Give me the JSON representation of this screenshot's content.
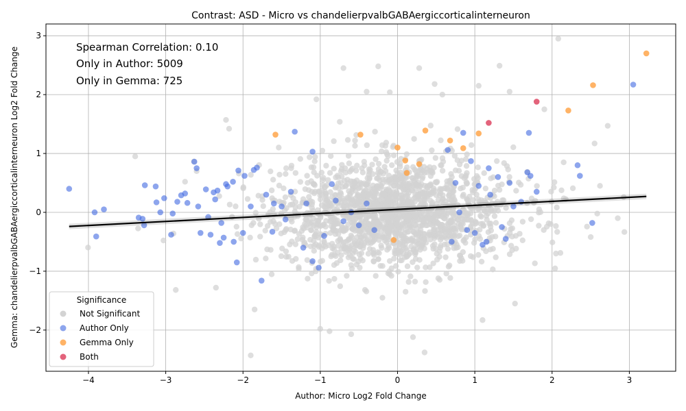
{
  "chart_data": {
    "type": "scatter",
    "title": "Contrast: ASD - Micro vs chandelierpvalbGABAergiccorticalinterneuron",
    "xlabel": "Author: Micro Log2 Fold Change",
    "ylabel": "Gemma: chandelierpvalbGABAergiccorticalinterneuron Log2 Fold Change",
    "xlim": [
      -4.55,
      3.6
    ],
    "ylim": [
      -2.7,
      3.2
    ],
    "x_ticks": [
      -4,
      -3,
      -2,
      -1,
      0,
      1,
      2,
      3
    ],
    "y_ticks": [
      -2,
      -1,
      0,
      1,
      2,
      3
    ],
    "grid": true,
    "annotations": [
      "Spearman Correlation: 0.10",
      "Only in Author: 5009",
      "Only in Gemma: 725"
    ],
    "legend": {
      "title": "Significance",
      "placement": "lower-left",
      "entries": [
        {
          "label": "Not Significant",
          "color": "#d3d3d3"
        },
        {
          "label": "Author Only",
          "color": "#4169e1"
        },
        {
          "label": "Gemma Only",
          "color": "#ffa040"
        },
        {
          "label": "Both",
          "color": "#dc3c5a"
        }
      ]
    },
    "regression_line": {
      "x": [
        -4.25,
        3.22
      ],
      "y": [
        -0.24,
        0.27
      ],
      "color": "#000000"
    },
    "series": [
      {
        "name": "Author Only",
        "color": "#4169e1",
        "points": [
          [
            -4.25,
            0.4
          ],
          [
            -3.92,
            0.0
          ],
          [
            -3.9,
            -0.41
          ],
          [
            -3.8,
            0.05
          ],
          [
            -3.35,
            -0.09
          ],
          [
            -3.3,
            -0.11
          ],
          [
            -3.28,
            -0.22
          ],
          [
            -3.27,
            0.46
          ],
          [
            -3.13,
            0.44
          ],
          [
            -3.12,
            0.17
          ],
          [
            -3.07,
            0.0
          ],
          [
            -3.02,
            0.24
          ],
          [
            -2.93,
            -0.38
          ],
          [
            -2.91,
            -0.02
          ],
          [
            -2.85,
            0.18
          ],
          [
            -2.8,
            0.29
          ],
          [
            -2.75,
            0.32
          ],
          [
            -2.72,
            0.16
          ],
          [
            -2.63,
            0.86
          ],
          [
            -2.6,
            0.75
          ],
          [
            -2.58,
            0.1
          ],
          [
            -2.55,
            -0.35
          ],
          [
            -2.48,
            0.39
          ],
          [
            -2.45,
            -0.08
          ],
          [
            -2.42,
            -0.38
          ],
          [
            -2.38,
            0.34
          ],
          [
            -2.36,
            0.22
          ],
          [
            -2.33,
            0.37
          ],
          [
            -2.3,
            -0.52
          ],
          [
            -2.28,
            -0.18
          ],
          [
            -2.25,
            -0.43
          ],
          [
            -2.22,
            0.48
          ],
          [
            -2.2,
            0.44
          ],
          [
            -2.13,
            0.52
          ],
          [
            -2.12,
            -0.5
          ],
          [
            -2.08,
            -0.85
          ],
          [
            -2.06,
            0.71
          ],
          [
            -2.0,
            -0.35
          ],
          [
            -1.98,
            0.62
          ],
          [
            -1.9,
            0.1
          ],
          [
            -1.86,
            0.72
          ],
          [
            -1.82,
            0.76
          ],
          [
            -1.76,
            -1.16
          ],
          [
            -1.7,
            0.3
          ],
          [
            -1.62,
            -0.33
          ],
          [
            -1.6,
            0.15
          ],
          [
            -1.5,
            0.1
          ],
          [
            -1.45,
            -0.12
          ],
          [
            -1.38,
            0.35
          ],
          [
            -1.33,
            1.37
          ],
          [
            -1.22,
            -0.6
          ],
          [
            -1.18,
            0.15
          ],
          [
            -1.1,
            1.03
          ],
          [
            -1.1,
            -0.83
          ],
          [
            -1.02,
            -0.94
          ],
          [
            -0.95,
            -0.4
          ],
          [
            -0.85,
            0.48
          ],
          [
            -0.8,
            0.2
          ],
          [
            -0.7,
            -0.15
          ],
          [
            -0.6,
            0.0
          ],
          [
            -0.5,
            -0.22
          ],
          [
            -0.4,
            0.15
          ],
          [
            -0.3,
            -0.3
          ],
          [
            0.65,
            1.06
          ],
          [
            0.7,
            -0.5
          ],
          [
            0.75,
            0.5
          ],
          [
            0.8,
            0.0
          ],
          [
            0.85,
            1.35
          ],
          [
            0.9,
            -0.3
          ],
          [
            0.95,
            0.87
          ],
          [
            1.0,
            -0.35
          ],
          [
            1.05,
            0.45
          ],
          [
            1.1,
            -0.55
          ],
          [
            1.15,
            -0.5
          ],
          [
            1.18,
            0.75
          ],
          [
            1.2,
            0.3
          ],
          [
            1.3,
            0.6
          ],
          [
            1.35,
            -0.25
          ],
          [
            1.4,
            -0.45
          ],
          [
            1.45,
            0.5
          ],
          [
            1.5,
            0.1
          ],
          [
            1.6,
            0.18
          ],
          [
            1.68,
            0.68
          ],
          [
            1.7,
            1.35
          ],
          [
            1.72,
            0.62
          ],
          [
            1.8,
            0.35
          ],
          [
            2.33,
            0.8
          ],
          [
            2.36,
            0.62
          ],
          [
            2.52,
            -0.18
          ],
          [
            3.05,
            2.17
          ]
        ]
      },
      {
        "name": "Gemma Only",
        "color": "#ffa040",
        "points": [
          [
            -1.58,
            1.32
          ],
          [
            -0.48,
            1.32
          ],
          [
            0.0,
            1.1
          ],
          [
            0.1,
            0.88
          ],
          [
            0.28,
            0.82
          ],
          [
            0.36,
            1.39
          ],
          [
            0.68,
            1.22
          ],
          [
            0.85,
            1.09
          ],
          [
            1.05,
            1.34
          ],
          [
            2.21,
            1.73
          ],
          [
            2.53,
            2.16
          ],
          [
            3.22,
            2.7
          ],
          [
            -0.05,
            -0.47
          ],
          [
            0.12,
            0.67
          ]
        ]
      },
      {
        "name": "Both",
        "color": "#dc3c5a",
        "points": [
          [
            1.18,
            1.52
          ],
          [
            1.8,
            1.88
          ]
        ]
      }
    ],
    "not_significant": {
      "name": "Not Significant",
      "color": "#d3d3d3",
      "seed": 20240611,
      "outliers": [
        [
          2.08,
          2.95
        ],
        [
          -0.7,
          2.45
        ],
        [
          -0.25,
          2.48
        ],
        [
          0.28,
          2.45
        ],
        [
          1.32,
          2.49
        ],
        [
          0.48,
          2.18
        ],
        [
          -0.55,
          1.22
        ],
        [
          -2.22,
          1.57
        ],
        [
          -1.05,
          1.92
        ],
        [
          -0.4,
          2.05
        ],
        [
          1.05,
          2.15
        ],
        [
          1.45,
          2.05
        ],
        [
          -1.9,
          -2.43
        ],
        [
          -0.88,
          -2.02
        ],
        [
          -0.6,
          -2.07
        ],
        [
          0.35,
          -2.38
        ],
        [
          0.2,
          -2.12
        ],
        [
          -1.0,
          -1.98
        ],
        [
          2.55,
          1.17
        ],
        [
          2.72,
          1.47
        ],
        [
          2.85,
          -0.1
        ],
        [
          2.62,
          0.45
        ],
        [
          2.5,
          -0.42
        ],
        [
          2.05,
          -0.7
        ],
        [
          -2.35,
          -1.28
        ],
        [
          -2.6,
          0.7
        ],
        [
          -2.75,
          0.52
        ],
        [
          -2.9,
          -0.36
        ],
        [
          1.1,
          -1.83
        ],
        [
          1.52,
          -1.55
        ],
        [
          -1.85,
          -1.65
        ],
        [
          1.9,
          1.75
        ],
        [
          2.15,
          0.85
        ],
        [
          -2.18,
          1.42
        ],
        [
          0.58,
          2.0
        ],
        [
          -0.1,
          2.04
        ]
      ]
    }
  }
}
